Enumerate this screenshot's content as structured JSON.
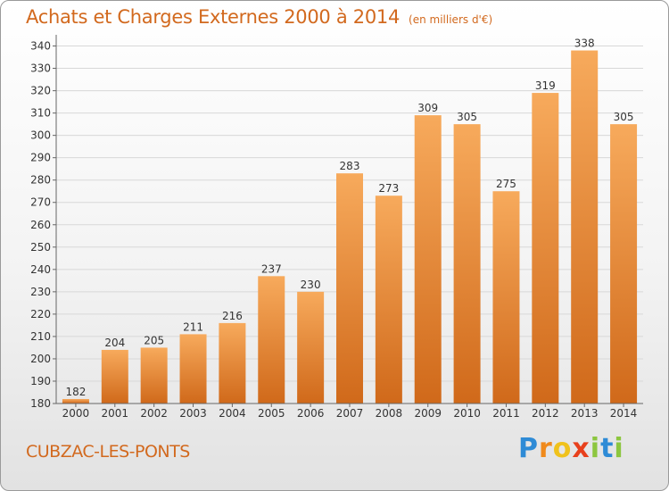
{
  "header": {
    "title": "Achats et Charges Externes 2000 à 2014",
    "subtitle": "(en milliers d'€)"
  },
  "footer": {
    "city": "CUBZAC-LES-PONTS",
    "logo": "Proxiti"
  },
  "colors": {
    "title": "#d2691e",
    "bar_light": "#f6a85a",
    "bar_dark": "#d26e1e",
    "grid": "#d8d8d8"
  },
  "chart_data": {
    "type": "bar",
    "title": "Achats et Charges Externes 2000 à 2014",
    "subtitle": "(en milliers d'€)",
    "xlabel": "",
    "ylabel": "",
    "categories": [
      "2000",
      "2001",
      "2002",
      "2003",
      "2004",
      "2005",
      "2006",
      "2007",
      "2008",
      "2009",
      "2010",
      "2011",
      "2012",
      "2013",
      "2014"
    ],
    "values": [
      182,
      204,
      205,
      211,
      216,
      237,
      230,
      283,
      273,
      309,
      305,
      275,
      319,
      338,
      305
    ],
    "ylim": [
      180,
      345
    ],
    "yticks": [
      180,
      190,
      200,
      210,
      220,
      230,
      240,
      250,
      260,
      270,
      280,
      290,
      300,
      310,
      320,
      330,
      340
    ],
    "grid": true,
    "legend": "none"
  }
}
